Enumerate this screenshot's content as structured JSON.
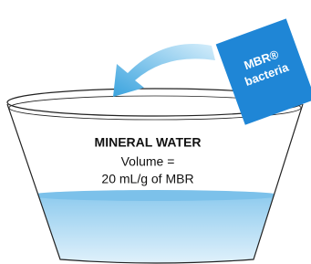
{
  "packet": {
    "lines": [
      "MBR®",
      "bacteria"
    ]
  },
  "cup": {
    "label": "MINERAL WATER",
    "lines": [
      "Volume =",
      "20 mL/g of MBR"
    ]
  }
}
